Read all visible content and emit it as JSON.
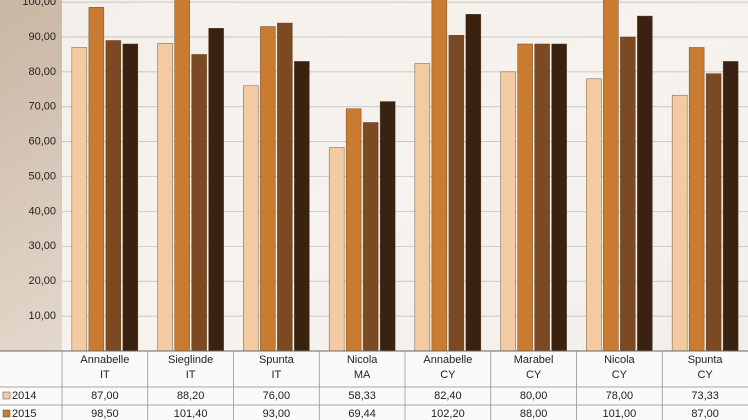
{
  "chart_data": {
    "type": "bar",
    "categories": [
      [
        "Annabelle",
        "IT"
      ],
      [
        "Sieglinde",
        "IT"
      ],
      [
        "Spunta",
        "IT"
      ],
      [
        "Nicola",
        "MA"
      ],
      [
        "Annabelle",
        "CY"
      ],
      [
        "Marabel",
        "CY"
      ],
      [
        "Nicola",
        "CY"
      ],
      [
        "Spunta",
        "CY"
      ]
    ],
    "series": [
      {
        "name": "2014",
        "color": "#f2cba3",
        "values": [
          87.0,
          88.2,
          76.0,
          58.33,
          82.4,
          80.0,
          78.0,
          73.33
        ],
        "value_labels": [
          "87,00",
          "88,20",
          "76,00",
          "58,33",
          "82,40",
          "80,00",
          "78,00",
          "73,33"
        ]
      },
      {
        "name": "2015",
        "color": "#c97b30",
        "values": [
          98.5,
          101.4,
          93.0,
          69.44,
          102.2,
          88.0,
          101.0,
          87.0
        ],
        "value_labels": [
          "98,50",
          "101,40",
          "93,00",
          "69,44",
          "102,20",
          "88,00",
          "101,00",
          "87,00"
        ]
      },
      {
        "color": "#7b4a22",
        "values": [
          89,
          85,
          94,
          65.5,
          90.5,
          88,
          90,
          79.5
        ]
      },
      {
        "color": "#3a2210",
        "values": [
          88,
          92.5,
          83,
          71.5,
          96.5,
          88,
          96,
          83
        ]
      }
    ],
    "ylim": [
      0,
      100.6
    ],
    "yticks": [
      {
        "value": 0,
        "label": "-"
      },
      {
        "value": 10,
        "label": "10,00"
      },
      {
        "value": 20,
        "label": "20,00"
      },
      {
        "value": 30,
        "label": "30,00"
      },
      {
        "value": 40,
        "label": "40,00"
      },
      {
        "value": 50,
        "label": "50,00"
      },
      {
        "value": 60,
        "label": "60,00"
      },
      {
        "value": 70,
        "label": "70,00"
      },
      {
        "value": 80,
        "label": "80,00"
      },
      {
        "value": 90,
        "label": "90,00"
      },
      {
        "value": 100,
        "label": "100,00"
      }
    ],
    "grid": true
  }
}
